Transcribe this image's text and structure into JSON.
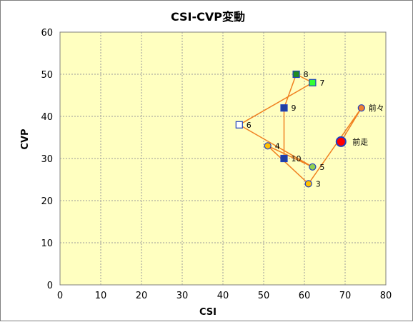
{
  "chart_data": {
    "type": "scatter",
    "title": "CSI-CVP変動",
    "xlabel": "CSI",
    "ylabel": "CVP",
    "xlim": [
      0,
      80
    ],
    "ylim": [
      0,
      60
    ],
    "xticks": [
      0,
      10,
      20,
      30,
      40,
      50,
      60,
      70,
      80
    ],
    "yticks": [
      0,
      10,
      20,
      30,
      40,
      50,
      60
    ],
    "grid": true,
    "plot_background": "#ffffc0",
    "line_color": "#f08020",
    "points": [
      {
        "label": "前走",
        "x": 69,
        "y": 34,
        "shape": "circle",
        "fill": "#ff0000",
        "stroke": "#1f3fbf",
        "big": true
      },
      {
        "label": "前々",
        "x": 74,
        "y": 42,
        "shape": "circle",
        "fill": "#f08030",
        "stroke": "#1f3fbf"
      },
      {
        "label": "3",
        "x": 61,
        "y": 24,
        "shape": "circle",
        "fill": "#ffc000",
        "stroke": "#1f3fbf"
      },
      {
        "label": "4",
        "x": 51,
        "y": 33,
        "shape": "circle",
        "fill": "#ffc000",
        "stroke": "#1f3fbf"
      },
      {
        "label": "5",
        "x": 62,
        "y": 28,
        "shape": "circle",
        "fill": "#92d050",
        "stroke": "#1f3fbf"
      },
      {
        "label": "6",
        "x": 44,
        "y": 38,
        "shape": "square",
        "fill": "#ffffff",
        "stroke": "#1f3fbf"
      },
      {
        "label": "7",
        "x": 62,
        "y": 48,
        "shape": "square",
        "fill": "#33ff33",
        "stroke": "#1f3fbf"
      },
      {
        "label": "8",
        "x": 58,
        "y": 50,
        "shape": "square",
        "fill": "#228b22",
        "stroke": "#1f3fbf"
      },
      {
        "label": "9",
        "x": 55,
        "y": 42,
        "shape": "square",
        "fill": "#1f3fa0",
        "stroke": "#1f3fbf"
      },
      {
        "label": "10",
        "x": 55,
        "y": 30,
        "shape": "square",
        "fill": "#1f3fa0",
        "stroke": "#1f3fbf"
      }
    ]
  }
}
